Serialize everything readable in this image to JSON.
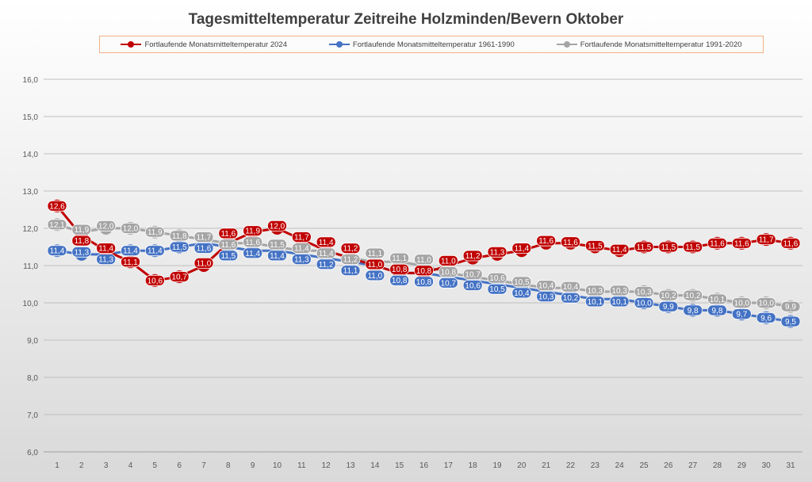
{
  "chart_data": {
    "type": "line",
    "title": "Tagesmitteltemperatur Zeitreihe Holzminden/Bevern Oktober",
    "xlabel": "",
    "ylabel": "",
    "x": [
      1,
      2,
      3,
      4,
      5,
      6,
      7,
      8,
      9,
      10,
      11,
      12,
      13,
      14,
      15,
      16,
      17,
      18,
      19,
      20,
      21,
      22,
      23,
      24,
      25,
      26,
      27,
      28,
      29,
      30,
      31
    ],
    "ylim": [
      6,
      16
    ],
    "yticks": [
      "6,0",
      "7,0",
      "8,0",
      "9,0",
      "10,0",
      "11,0",
      "12,0",
      "13,0",
      "14,0",
      "15,0",
      "16,0"
    ],
    "grid": true,
    "legend_position": "top",
    "series": [
      {
        "name": "Fortlaufende Monatsmitteltemperatur 2024",
        "color": "#c00000",
        "values": [
          12.6,
          11.8,
          11.4,
          11.1,
          10.6,
          10.7,
          11.0,
          11.6,
          11.9,
          12.0,
          11.7,
          11.4,
          11.2,
          11.0,
          10.8,
          10.8,
          11.0,
          11.2,
          11.3,
          11.4,
          11.6,
          11.6,
          11.5,
          11.4,
          11.5,
          11.5,
          11.5,
          11.6,
          11.6,
          11.7,
          11.6
        ]
      },
      {
        "name": "Fortlaufende Monatsmitteltemperatur 1961-1990",
        "color": "#4472c4",
        "values": [
          11.4,
          11.3,
          11.3,
          11.4,
          11.4,
          11.5,
          11.6,
          11.5,
          11.4,
          11.4,
          11.3,
          11.2,
          11.1,
          11.0,
          10.8,
          10.8,
          10.7,
          10.6,
          10.5,
          10.4,
          10.3,
          10.2,
          10.1,
          10.1,
          10.0,
          9.9,
          9.8,
          9.8,
          9.7,
          9.6,
          9.5
        ]
      },
      {
        "name": "Fortlaufende Monatsmitteltemperatur 1991-2020",
        "color": "#a5a5a5",
        "values": [
          12.1,
          11.9,
          12.0,
          12.0,
          11.9,
          11.8,
          11.7,
          11.6,
          11.6,
          11.5,
          11.4,
          11.4,
          11.2,
          11.1,
          11.1,
          11.0,
          10.8,
          10.7,
          10.6,
          10.5,
          10.4,
          10.4,
          10.3,
          10.3,
          10.3,
          10.2,
          10.2,
          10.1,
          10.0,
          10.0,
          9.9
        ]
      }
    ]
  }
}
